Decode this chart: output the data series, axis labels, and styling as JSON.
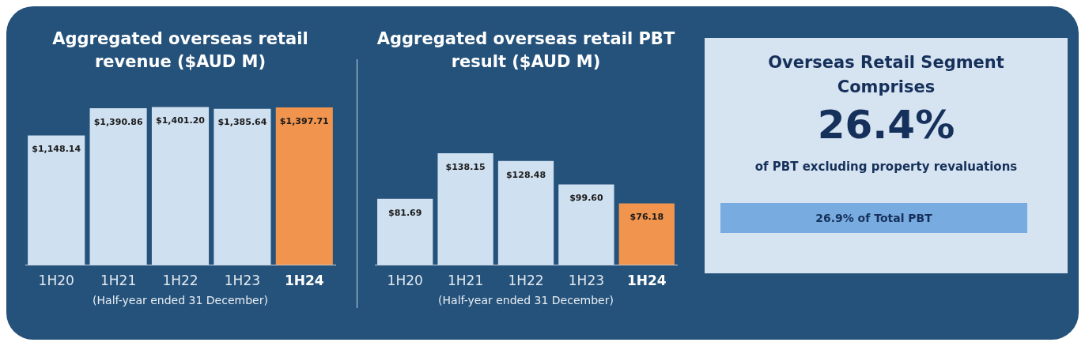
{
  "chart_data": [
    {
      "type": "bar",
      "title": "Aggregated overseas retail revenue ($AUD M)",
      "xlabel": "(Half-year ended 31 December)",
      "categories": [
        "1H20",
        "1H21",
        "1H22",
        "1H23",
        "1H24"
      ],
      "values": [
        1148.14,
        1390.86,
        1401.2,
        1385.64,
        1397.71
      ],
      "value_labels": [
        "$1,148.14",
        "$1,390.86",
        "$1,401.20",
        "$1,385.64",
        "$1,397.71"
      ],
      "colors": [
        "#cfe0f0",
        "#cfe0f0",
        "#cfe0f0",
        "#cfe0f0",
        "#f0944e"
      ],
      "tick_labels": "x"
    },
    {
      "type": "bar",
      "title": "Aggregated overseas retail PBT result ($AUD M)",
      "xlabel": "(Half-year ended 31 December)",
      "categories": [
        "1H20",
        "1H21",
        "1H22",
        "1H23",
        "1H24"
      ],
      "values": [
        81.69,
        138.15,
        128.48,
        99.6,
        76.18
      ],
      "value_labels": [
        "$81.69",
        "$138.15",
        "$128.48",
        "$99.60",
        "$76.18"
      ],
      "colors": [
        "#cfe0f0",
        "#cfe0f0",
        "#cfe0f0",
        "#cfe0f0",
        "#f0944e"
      ],
      "tick_labels": "x"
    },
    {
      "type": "other",
      "title": "Overseas Retail Segment Comprises",
      "annotations": [
        "26.4%",
        "of PBT excluding property revaluations",
        "26.9% of Total PBT"
      ]
    }
  ]
}
